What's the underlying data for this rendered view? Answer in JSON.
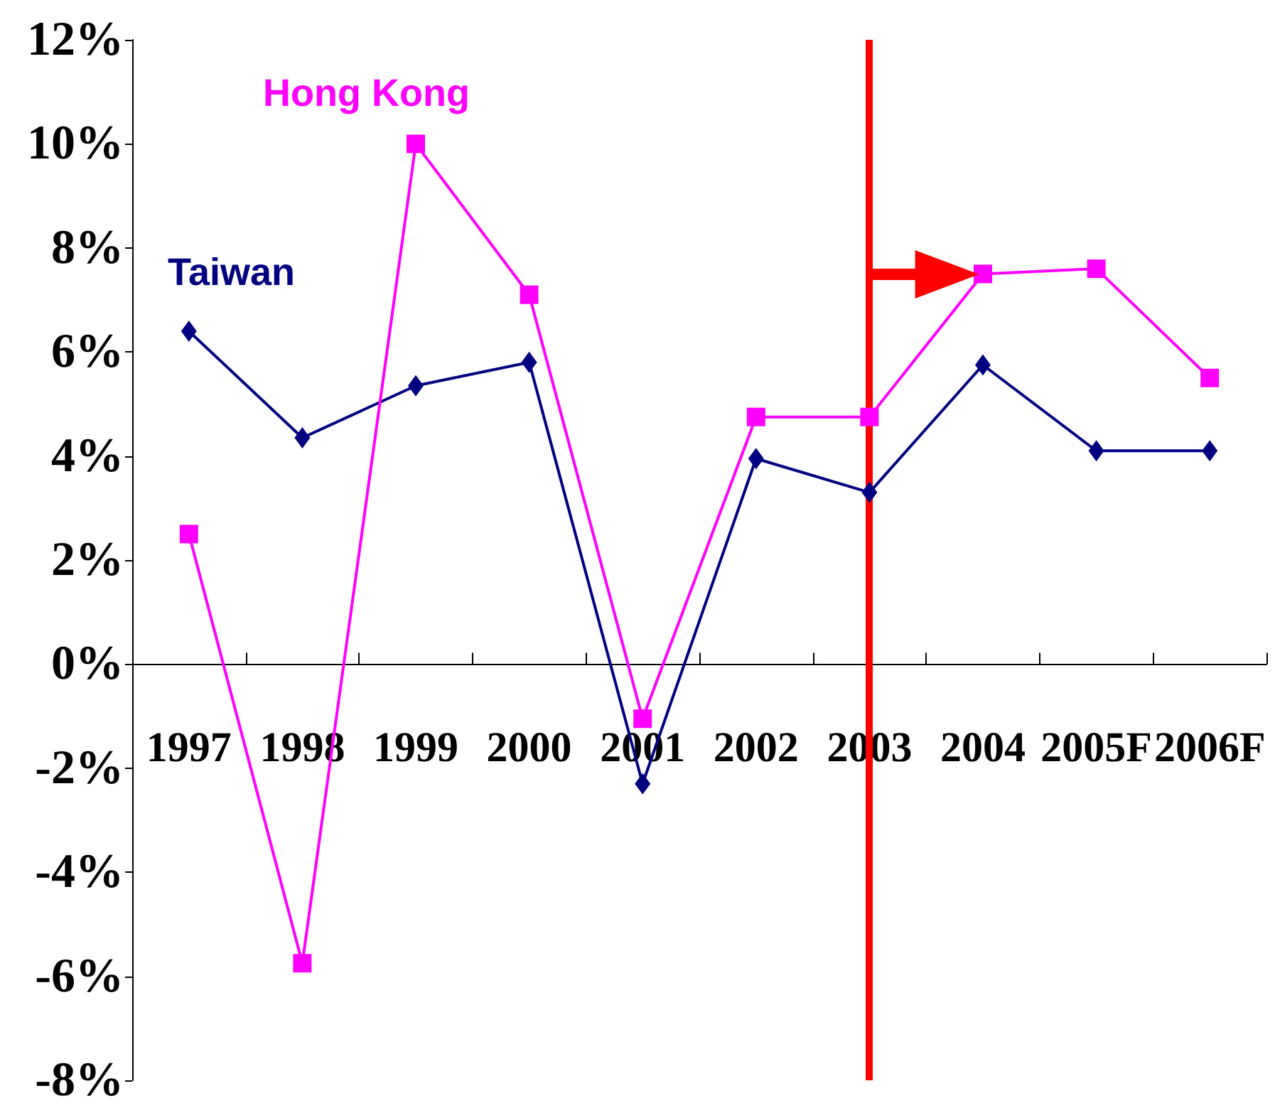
{
  "chart_data": {
    "type": "line",
    "categories": [
      "1997",
      "1998",
      "1999",
      "2000",
      "2001",
      "2002",
      "2003",
      "2004",
      "2005F",
      "2006F"
    ],
    "series": [
      {
        "name": "Taiwan",
        "color": "#000080",
        "marker": "diamond",
        "values": [
          6.4,
          4.35,
          5.35,
          5.8,
          -2.3,
          3.95,
          3.3,
          5.75,
          4.1,
          4.1
        ]
      },
      {
        "name": "Hong Kong",
        "color": "#ff00ff",
        "marker": "square",
        "values": [
          2.5,
          -5.75,
          10.0,
          7.1,
          -1.05,
          4.75,
          4.75,
          7.5,
          7.6,
          5.5
        ]
      }
    ],
    "ylim": [
      -8,
      12
    ],
    "yticks": [
      {
        "value": -8,
        "label": "-8%"
      },
      {
        "value": -6,
        "label": "-6%"
      },
      {
        "value": -4,
        "label": "-4%"
      },
      {
        "value": -2,
        "label": "-2%"
      },
      {
        "value": 0,
        "label": "0%"
      },
      {
        "value": 2,
        "label": "2%"
      },
      {
        "value": 4,
        "label": "4%"
      },
      {
        "value": 6,
        "label": "6%"
      },
      {
        "value": 8,
        "label": "8%"
      },
      {
        "value": 10,
        "label": "10%"
      },
      {
        "value": 12,
        "label": "12%"
      }
    ],
    "ref_lines": [
      {
        "axis": "x",
        "value": "2003",
        "color": "#ff0000"
      }
    ],
    "grid": false,
    "legend": false
  }
}
